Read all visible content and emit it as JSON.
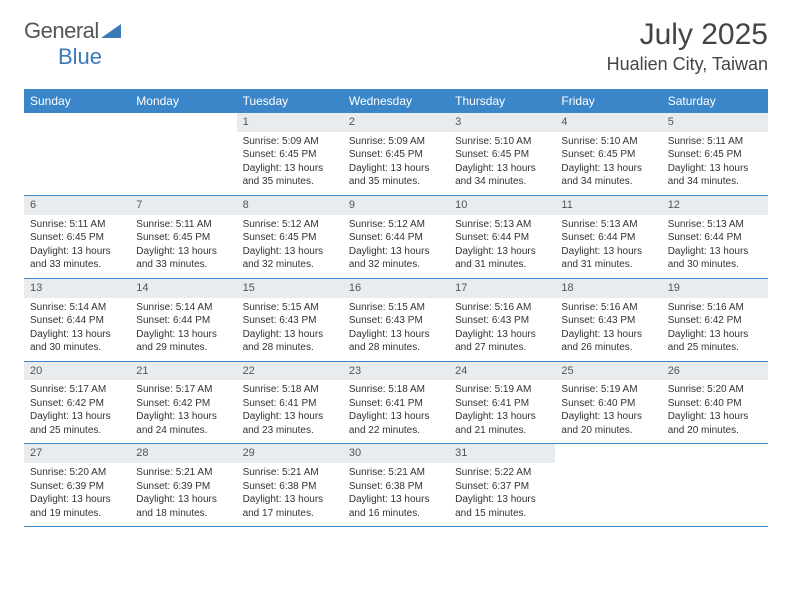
{
  "logo": {
    "text1": "General",
    "text2": "Blue"
  },
  "title": "July 2025",
  "location": "Hualien City, Taiwan",
  "colors": {
    "header_bg": "#3a86c8",
    "header_text": "#ffffff",
    "daynum_bg": "#e8ecef",
    "border": "#3a86c8",
    "logo_accent": "#3a7ab8"
  },
  "fonts": {
    "title_size": 30,
    "location_size": 18,
    "day_header_size": 12,
    "cell_size": 10
  },
  "dayHeaders": [
    "Sunday",
    "Monday",
    "Tuesday",
    "Wednesday",
    "Thursday",
    "Friday",
    "Saturday"
  ],
  "weeks": [
    [
      {
        "n": "",
        "sr": "",
        "ss": "",
        "dl": ""
      },
      {
        "n": "",
        "sr": "",
        "ss": "",
        "dl": ""
      },
      {
        "n": "1",
        "sr": "5:09 AM",
        "ss": "6:45 PM",
        "dl": "13 hours and 35 minutes."
      },
      {
        "n": "2",
        "sr": "5:09 AM",
        "ss": "6:45 PM",
        "dl": "13 hours and 35 minutes."
      },
      {
        "n": "3",
        "sr": "5:10 AM",
        "ss": "6:45 PM",
        "dl": "13 hours and 34 minutes."
      },
      {
        "n": "4",
        "sr": "5:10 AM",
        "ss": "6:45 PM",
        "dl": "13 hours and 34 minutes."
      },
      {
        "n": "5",
        "sr": "5:11 AM",
        "ss": "6:45 PM",
        "dl": "13 hours and 34 minutes."
      }
    ],
    [
      {
        "n": "6",
        "sr": "5:11 AM",
        "ss": "6:45 PM",
        "dl": "13 hours and 33 minutes."
      },
      {
        "n": "7",
        "sr": "5:11 AM",
        "ss": "6:45 PM",
        "dl": "13 hours and 33 minutes."
      },
      {
        "n": "8",
        "sr": "5:12 AM",
        "ss": "6:45 PM",
        "dl": "13 hours and 32 minutes."
      },
      {
        "n": "9",
        "sr": "5:12 AM",
        "ss": "6:44 PM",
        "dl": "13 hours and 32 minutes."
      },
      {
        "n": "10",
        "sr": "5:13 AM",
        "ss": "6:44 PM",
        "dl": "13 hours and 31 minutes."
      },
      {
        "n": "11",
        "sr": "5:13 AM",
        "ss": "6:44 PM",
        "dl": "13 hours and 31 minutes."
      },
      {
        "n": "12",
        "sr": "5:13 AM",
        "ss": "6:44 PM",
        "dl": "13 hours and 30 minutes."
      }
    ],
    [
      {
        "n": "13",
        "sr": "5:14 AM",
        "ss": "6:44 PM",
        "dl": "13 hours and 30 minutes."
      },
      {
        "n": "14",
        "sr": "5:14 AM",
        "ss": "6:44 PM",
        "dl": "13 hours and 29 minutes."
      },
      {
        "n": "15",
        "sr": "5:15 AM",
        "ss": "6:43 PM",
        "dl": "13 hours and 28 minutes."
      },
      {
        "n": "16",
        "sr": "5:15 AM",
        "ss": "6:43 PM",
        "dl": "13 hours and 28 minutes."
      },
      {
        "n": "17",
        "sr": "5:16 AM",
        "ss": "6:43 PM",
        "dl": "13 hours and 27 minutes."
      },
      {
        "n": "18",
        "sr": "5:16 AM",
        "ss": "6:43 PM",
        "dl": "13 hours and 26 minutes."
      },
      {
        "n": "19",
        "sr": "5:16 AM",
        "ss": "6:42 PM",
        "dl": "13 hours and 25 minutes."
      }
    ],
    [
      {
        "n": "20",
        "sr": "5:17 AM",
        "ss": "6:42 PM",
        "dl": "13 hours and 25 minutes."
      },
      {
        "n": "21",
        "sr": "5:17 AM",
        "ss": "6:42 PM",
        "dl": "13 hours and 24 minutes."
      },
      {
        "n": "22",
        "sr": "5:18 AM",
        "ss": "6:41 PM",
        "dl": "13 hours and 23 minutes."
      },
      {
        "n": "23",
        "sr": "5:18 AM",
        "ss": "6:41 PM",
        "dl": "13 hours and 22 minutes."
      },
      {
        "n": "24",
        "sr": "5:19 AM",
        "ss": "6:41 PM",
        "dl": "13 hours and 21 minutes."
      },
      {
        "n": "25",
        "sr": "5:19 AM",
        "ss": "6:40 PM",
        "dl": "13 hours and 20 minutes."
      },
      {
        "n": "26",
        "sr": "5:20 AM",
        "ss": "6:40 PM",
        "dl": "13 hours and 20 minutes."
      }
    ],
    [
      {
        "n": "27",
        "sr": "5:20 AM",
        "ss": "6:39 PM",
        "dl": "13 hours and 19 minutes."
      },
      {
        "n": "28",
        "sr": "5:21 AM",
        "ss": "6:39 PM",
        "dl": "13 hours and 18 minutes."
      },
      {
        "n": "29",
        "sr": "5:21 AM",
        "ss": "6:38 PM",
        "dl": "13 hours and 17 minutes."
      },
      {
        "n": "30",
        "sr": "5:21 AM",
        "ss": "6:38 PM",
        "dl": "13 hours and 16 minutes."
      },
      {
        "n": "31",
        "sr": "5:22 AM",
        "ss": "6:37 PM",
        "dl": "13 hours and 15 minutes."
      },
      {
        "n": "",
        "sr": "",
        "ss": "",
        "dl": ""
      },
      {
        "n": "",
        "sr": "",
        "ss": "",
        "dl": ""
      }
    ]
  ],
  "labels": {
    "sunrise": "Sunrise:",
    "sunset": "Sunset:",
    "daylight": "Daylight:"
  }
}
